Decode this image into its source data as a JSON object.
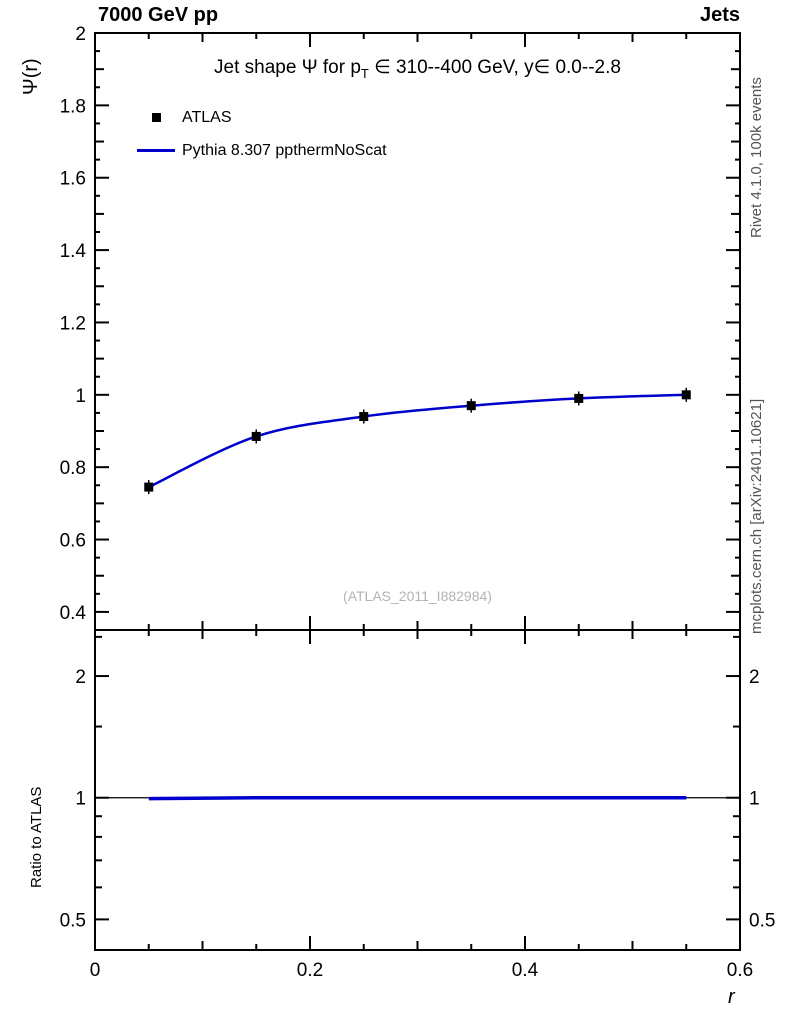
{
  "header": {
    "left": "7000 GeV pp",
    "right": "Jets"
  },
  "side_notes": {
    "rivet": "Rivet 4.1.0, 100k events",
    "mcplots": "mcplots.cern.ch [arXiv:2401.10621]"
  },
  "watermark": "(ATLAS_2011_I882984)",
  "title": {
    "pre": "Jet shape Ψ for p",
    "sub": "T",
    "post": " ∈ 310--400 GeV, y∈ 0.0--2.8"
  },
  "legend": [
    {
      "label": "ATLAS",
      "type": "marker",
      "color": "#000000"
    },
    {
      "label": "Pythia 8.307 ppthermNoScat",
      "type": "line",
      "color": "#0000cc"
    }
  ],
  "colors": {
    "mc_line": "#0000cc",
    "data_marker": "#000000",
    "watermark": "#b3b3b3",
    "side_note": "#555555",
    "frame": "#000000"
  },
  "chart_data": {
    "type": "line",
    "xlabel": "r",
    "xlim": [
      0,
      0.6
    ],
    "xticks": {
      "values": [
        0,
        0.2,
        0.4,
        0.6
      ],
      "labels": [
        "0",
        "0.2",
        "0.4",
        "0.6"
      ],
      "minor_step": 0.05
    },
    "panels": [
      {
        "id": "main",
        "ylabel": "Ψ(r)",
        "yscale": "linear",
        "ylim": [
          0.35,
          2.0
        ],
        "yticks": {
          "values": [
            0.4,
            0.6,
            0.8,
            1,
            1.2,
            1.4,
            1.6,
            1.8,
            2
          ],
          "labels": [
            "0.4",
            "0.6",
            "0.8",
            "1",
            "1.2",
            "1.4",
            "1.6",
            "1.8",
            "2"
          ],
          "minor_step": 0.05
        },
        "series": [
          {
            "name": "ATLAS",
            "type": "scatter",
            "marker": "square",
            "color": "#000000",
            "x": [
              0.05,
              0.15,
              0.25,
              0.35,
              0.45,
              0.55
            ],
            "y": [
              0.745,
              0.885,
              0.94,
              0.97,
              0.99,
              1.0
            ]
          },
          {
            "name": "Pythia 8.307 ppthermNoScat",
            "type": "line",
            "color": "#0000cc",
            "x": [
              0.05,
              0.15,
              0.25,
              0.35,
              0.45,
              0.55
            ],
            "y": [
              0.745,
              0.885,
              0.94,
              0.97,
              0.99,
              1.0
            ]
          }
        ]
      },
      {
        "id": "ratio",
        "ylabel": "Ratio to ATLAS",
        "yscale": "log",
        "ylim": [
          0.42,
          2.6
        ],
        "yticks": {
          "values": [
            0.5,
            1,
            2
          ],
          "labels": [
            "0.5",
            "1",
            "2"
          ],
          "minor_values": [
            0.6,
            0.7,
            0.8,
            0.9,
            1.5,
            2.5
          ]
        },
        "reference_line": 1,
        "series": [
          {
            "name": "Pythia 8.307 ppthermNoScat / ATLAS",
            "type": "line",
            "color": "#0000cc",
            "x": [
              0.05,
              0.15,
              0.25,
              0.35,
              0.45,
              0.55
            ],
            "y": [
              0.995,
              1.0,
              1.0,
              1.0,
              1.0,
              1.0
            ]
          }
        ]
      }
    ]
  }
}
